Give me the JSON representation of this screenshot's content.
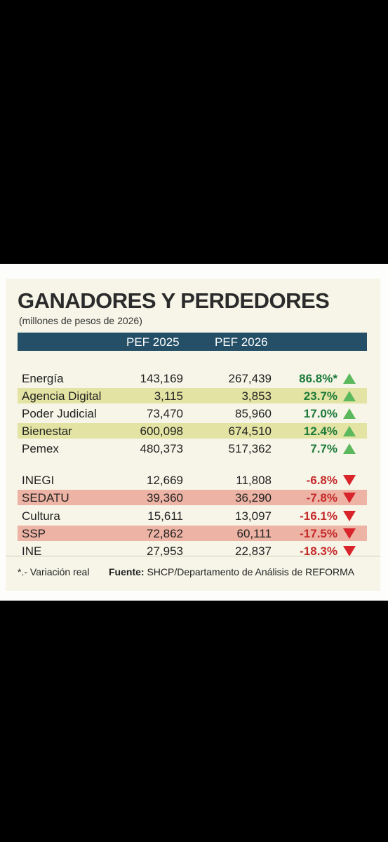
{
  "chart_data": {
    "type": "table",
    "title": "GANADORES Y PERDEDORES",
    "subtitle": "(millones de pesos de 2026)",
    "columns": [
      "",
      "PEF 2025",
      "PEF 2026",
      ""
    ],
    "rows": [
      {
        "name": "Energía",
        "pef2025": "143,169",
        "pef2026": "267,439",
        "change": "86.8%*",
        "direction": "up",
        "highlight": "none"
      },
      {
        "name": "Agencia Digital",
        "pef2025": "3,115",
        "pef2026": "3,853",
        "change": "23.7%",
        "direction": "up",
        "highlight": "green"
      },
      {
        "name": "Poder Judicial",
        "pef2025": "73,470",
        "pef2026": "85,960",
        "change": "17.0%",
        "direction": "up",
        "highlight": "none"
      },
      {
        "name": "Bienestar",
        "pef2025": "600,098",
        "pef2026": "674,510",
        "change": "12.4%",
        "direction": "up",
        "highlight": "green"
      },
      {
        "name": "Pemex",
        "pef2025": "480,373",
        "pef2026": "517,362",
        "change": "7.7%",
        "direction": "up",
        "highlight": "none"
      },
      {
        "name": "INEGI",
        "pef2025": "12,669",
        "pef2026": "11,808",
        "change": "-6.8%",
        "direction": "down",
        "highlight": "none"
      },
      {
        "name": "SEDATU",
        "pef2025": "39,360",
        "pef2026": "36,290",
        "change": "-7.8%",
        "direction": "down",
        "highlight": "red"
      },
      {
        "name": "Cultura",
        "pef2025": "15,611",
        "pef2026": "13,097",
        "change": "-16.1%",
        "direction": "down",
        "highlight": "none"
      },
      {
        "name": "SSP",
        "pef2025": "72,862",
        "pef2026": "60,111",
        "change": "-17.5%",
        "direction": "down",
        "highlight": "red"
      },
      {
        "name": "INE",
        "pef2025": "27,953",
        "pef2026": "22,837",
        "change": "-18.3%",
        "direction": "down",
        "highlight": "none"
      }
    ],
    "footnote": "*.- Variación real",
    "source_label": "Fuente:",
    "source_text": " SHCP/Departamento de Análisis de REFORMA"
  },
  "colors": {
    "header": "#244f66",
    "up": "#1c7a3a",
    "down": "#c52a2a",
    "arrow_up": "#5cb85c",
    "arrow_down": "#d8242a"
  }
}
